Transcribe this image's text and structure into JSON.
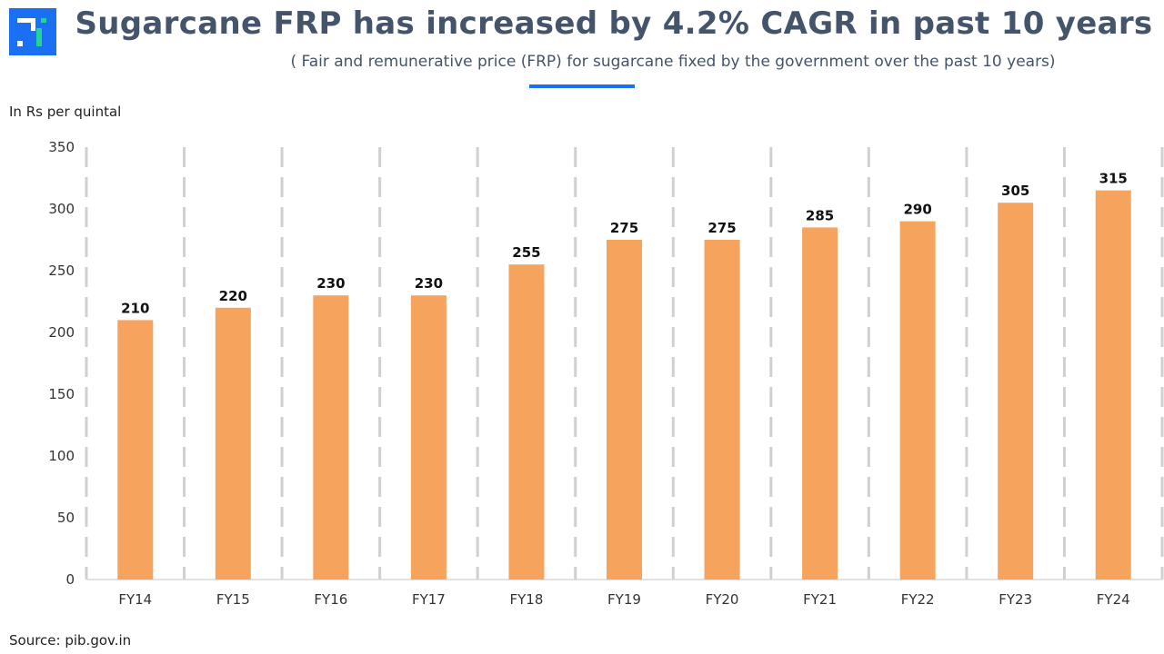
{
  "header": {
    "title": "Sugarcane FRP has increased by 4.2% CAGR in past 10 years",
    "subtitle": "( Fair and remunerative price (FRP) for sugarcane fixed by the government over the past 10 years)",
    "logo_icon": "brand-logo-icon",
    "accent_color": "#1a6ff2"
  },
  "unit_label": "In Rs per quintal",
  "source": "Source: pib.gov.in",
  "chart_data": {
    "type": "bar",
    "title": "Sugarcane FRP has increased by 4.2% CAGR in past 10 years",
    "xlabel": "",
    "ylabel": "In Rs per quintal",
    "categories": [
      "FY14",
      "FY15",
      "FY16",
      "FY17",
      "FY18",
      "FY19",
      "FY20",
      "FY21",
      "FY22",
      "FY23",
      "FY24"
    ],
    "values": [
      210,
      220,
      230,
      230,
      255,
      275,
      275,
      285,
      290,
      305,
      315
    ],
    "ylim": [
      0,
      350
    ],
    "yticks": [
      "0",
      "50",
      "100",
      "150",
      "200",
      "250",
      "300",
      "350"
    ],
    "grid": "vertical dashed between categories",
    "bar_color": "#f5a35d",
    "data_labels": true
  }
}
